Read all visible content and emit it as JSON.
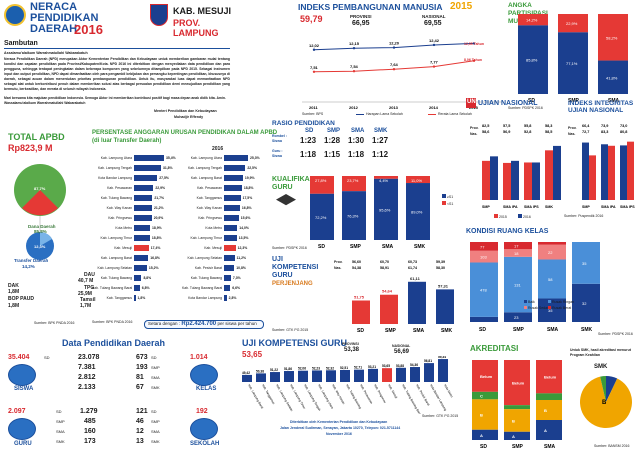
{
  "header": {
    "title_line1": "NERACA",
    "title_line2": "PENDIDIKAN",
    "title_line3": "DAERAH",
    "year": "2016",
    "kab": "KAB. MESUJI",
    "prov": "PROV. LAMPUNG"
  },
  "sambutan": {
    "title": "Sambutan",
    "salam": "Assalamu'alaikum Warrahmatullahi Wabarakatuh",
    "p1": "Neraca Pendidikan Daerah (NPD) merupakan Aktor Kementerian Pendidikan dan Kebudayaan untuk memberikan gambaran mulai tentang kondisi dan capaian pendidikan pada Provinsi/Kabupaten/Kota. NPD 2016 ini diterbitkan dengan menyediakan data pendidikan dan para pengguna, sehingga terdapat peningkatan dalam beberapa komponen yang sebelumnya ditampilkan pada NPD 2015. Sebagai instrumen input dan output pendidikan, NPD dapat dimanfaatkan oleh para pengambil kebijakan dan pemangku kepentingan pendidikan, khususnya di daerah, sebagai acuan dalam menentukan prioritas pembangunan pendidikan. Untuk itu, masyarakat luas dapat memanfaatkan NPD sebagai alat untuk berkontribusi penuh dalam memberikan solusi atas berbagai persoalan pendidikan demi mewujudkan pendidikan yang bermutu, berkeadilan, dan merata di seluruh wilayah Indonesia.",
    "p2": "Mari bersama kita majukan pendidikan Indonesia. Semoga Aktor ini memberikan kontribusi positif bagi masa depan anak didik kita. Amin. Wassalamu'alaikum Warrahmatullahi Wabarakatuh",
    "sign_title": "Menteri Pendidikan dan Kebudayaan",
    "sign_name": "Muhadjir Effendy"
  },
  "apbd": {
    "title": "TOTAL APBD",
    "total": "Rp823,9 M",
    "pie_pct_outer": "87,7%",
    "pie_pct_inner": "12,3%",
    "legend_dana": "Dana Daerah",
    "pct_dana": "85,8%",
    "legend_transfer": "Transfer Daerah",
    "pct_transfer": "14,2%",
    "source": "Sumber: BPK PNDA 2016",
    "items": [
      {
        "label": "DAU",
        "value": "40,7 M"
      },
      {
        "label": "DAK",
        "value": "1,8M"
      },
      {
        "label": "TPG",
        "value": "25,9M"
      },
      {
        "label": "BOP PAUD",
        "value": "1,8M"
      },
      {
        "label": "Tamsil",
        "value": "1,7M"
      }
    ]
  },
  "anggaran": {
    "title": "PERSENTASE ANGGARAN URUSAN PENDIDIKAN DALAM APBD",
    "subtitle": "(di luar Transfer Daerah)",
    "year": "2016",
    "left": [
      {
        "name": "Kab. Lampung Utara",
        "value": 35.4,
        "label": "35,4%",
        "hl": false
      },
      {
        "name": "Kab. Lampung Tengah",
        "value": 31.8,
        "label": "31,8%",
        "hl": false
      },
      {
        "name": "Kota Bandar Lampung",
        "value": 27.5,
        "label": "27,5%",
        "hl": false
      },
      {
        "name": "Kab. Pesawaran",
        "value": 22.9,
        "label": "22,9%",
        "hl": false
      },
      {
        "name": "Kab. Tulang Bawang",
        "value": 21.7,
        "label": "21,7%",
        "hl": false
      },
      {
        "name": "Kab. Way Kanan",
        "value": 21.2,
        "label": "21,2%",
        "hl": false
      },
      {
        "name": "Kab. Pringsewu",
        "value": 20.9,
        "label": "20,9%",
        "hl": false
      },
      {
        "name": "Kota Metro",
        "value": 18.9,
        "label": "18,9%",
        "hl": false
      },
      {
        "name": "Kab. Lampung Timur",
        "value": 18.8,
        "label": "18,8%",
        "hl": false
      },
      {
        "name": "Kab. Mesuji",
        "value": 17.4,
        "label": "17,4%",
        "hl": true
      },
      {
        "name": "Kab. Lampung Barat",
        "value": 16.8,
        "label": "16,8%",
        "hl": false
      },
      {
        "name": "Kab. Lampung Selatan",
        "value": 15.2,
        "label": "15,2%",
        "hl": false
      },
      {
        "name": "Kab. Tulang Bawang",
        "value": 8.8,
        "label": "8,8%",
        "hl": false
      },
      {
        "name": "Kab. Tulang Bawang Barat",
        "value": 6.8,
        "label": "6,8%",
        "hl": false
      },
      {
        "name": "Kab. Tanggamus",
        "value": 1.8,
        "label": "1,8%",
        "hl": false
      }
    ],
    "right": [
      {
        "name": "Kab. Lampung Utara",
        "value": 25.3,
        "label": "25,3%",
        "hl": false
      },
      {
        "name": "Kab. Lampung Tengah",
        "value": 22.5,
        "label": "22,5%",
        "hl": false
      },
      {
        "name": "Kab. Lampung Barat",
        "value": 19.9,
        "label": "19,9%",
        "hl": false
      },
      {
        "name": "Kab. Pesawaran",
        "value": 18.8,
        "label": "18,8%",
        "hl": false
      },
      {
        "name": "Kab. Tanggamus",
        "value": 17.5,
        "label": "17,5%",
        "hl": false
      },
      {
        "name": "Kab. Way Kanan",
        "value": 16.8,
        "label": "16,8%",
        "hl": false
      },
      {
        "name": "Kab. Pringsewu",
        "value": 15.6,
        "label": "15,6%",
        "hl": false
      },
      {
        "name": "Kota Metro",
        "value": 14.0,
        "label": "14,0%",
        "hl": false
      },
      {
        "name": "Kab. Lampung Timur",
        "value": 13.5,
        "label": "13,5%",
        "hl": false
      },
      {
        "name": "Kab. Mesuji",
        "value": 12.3,
        "label": "12,3%",
        "hl": true
      },
      {
        "name": "Kab. Lampung Selatan",
        "value": 11.2,
        "label": "11,2%",
        "hl": false
      },
      {
        "name": "Kab. Pesisir Barat",
        "value": 10.8,
        "label": "10,8%",
        "hl": false
      },
      {
        "name": "Kab. Tulang Bawang",
        "value": 7.3,
        "label": "7,3%",
        "hl": false
      },
      {
        "name": "Kab. Tulang Bawang Barat",
        "value": 6.6,
        "label": "6,6%",
        "hl": false
      },
      {
        "name": "Kota Bandar Lampung",
        "value": 2.8,
        "label": "2,8%",
        "hl": false
      }
    ],
    "setara_label": "Setara dengan :",
    "setara_value": "Rp2.424.700",
    "setara_unit": "per siswa per tahun",
    "source": "Sumber: BPK PNDA 2016"
  },
  "data_pendidikan": {
    "title": "Data Pendidikan Daerah",
    "siswa_total": "35.404",
    "siswa_label": "SISWA",
    "siswa_sd": "23.078",
    "siswa_smp": "7.381",
    "siswa_sma": "2.812",
    "siswa_smk": "2.133",
    "kelas_total": "1.014",
    "kelas_label": "KELAS",
    "kelas_sd": "673",
    "kelas_smp": "193",
    "kelas_sma": "81",
    "kelas_smk": "67",
    "guru_total": "2.097",
    "guru_label": "GURU",
    "guru_sd": "1.279",
    "guru_smp": "485",
    "guru_sma": "160",
    "guru_smk": "173",
    "sekolah_total": "192",
    "sekolah_label": "SEKOLAH",
    "sekolah_sd": "121",
    "sekolah_smp": "46",
    "sekolah_sma": "12",
    "sekolah_smk": "13",
    "lbl_sd": "SD",
    "lbl_smp": "SMP",
    "lbl_sma": "SMA",
    "lbl_smk": "SMK"
  },
  "ipm": {
    "title": "INDEKS PEMBANGUNAN MANUSIA",
    "year": "2015",
    "value": "59,79",
    "prov_label": "PROVINSI",
    "prov_value": "66,95",
    "nas_label": "NASIONAL",
    "nas_value": "69,55",
    "hls_label": "12,55 Tahun",
    "rls_label": "8,06 Tahun",
    "legend_hls": "Harapan Lama Sekolah",
    "legend_rls": "Rerata Lama Sekolah",
    "source": "Sumber: BPS"
  },
  "apm": {
    "title": "ANGKA PARTISIPASI MURNI",
    "source": "Sumber: PDSPK 2016"
  },
  "rasio": {
    "title": "RASIO PENDIDIKAN",
    "row1_label": "Rombel : Siswa",
    "row2_label": "Guru : Siswa",
    "sd": "SD",
    "smp": "SMP",
    "sma": "SMA",
    "smk": "SMK",
    "r1_sd": "1:23",
    "r1_smp": "1:28",
    "r1_sma": "1:30",
    "r1_smk": "1:27",
    "r2_sd": "1:18",
    "r2_smp": "1:15",
    "r2_sma": "1:18",
    "r2_smk": "1:12"
  },
  "kualifikasi": {
    "title": "KUALIFIKASI GURU",
    "source": "Sumber: PDSPK 2016",
    "legend_s1": "≥S1",
    "legend_less": "<S1"
  },
  "ukg": {
    "title_line1": "UJI",
    "title_line2": "KOMPETENSI",
    "title_line3": "GURU",
    "sub": "PERJENJANG",
    "prov_label": "Prov.",
    "nas_label": "Nas.",
    "source": "Sumber: GTK PG 2015"
  },
  "un": {
    "title": "UJIAN NASIONAL",
    "iiun_title": "INDEKS INTEGRITAS UJIAN NASIONAL",
    "prov_label": "Prov.",
    "nas_label": "Nas.",
    "legend_2015": "2015",
    "legend_2016": "2016",
    "source": "Sumber: Puspendik 2016"
  },
  "ruang": {
    "title": "KONDISI RUANG KELAS",
    "legend_baik": "Baik",
    "legend_ringan": "Rusak Ringan",
    "legend_sedang": "Rusak Sedang",
    "legend_berat": "Rusak Berat",
    "source": "Sumber: PDSPK 2016"
  },
  "ukg_daerah": {
    "title": "UJI KOMPETENSI GURU",
    "value": "53,65",
    "prov_label": "PROVINSI",
    "prov_value": "53,38",
    "nas_label": "NASIONAL",
    "nas_value": "56,69",
    "source": "Sumber: GTK PG 2015"
  },
  "akreditasi": {
    "title": "AKREDITASI",
    "note": "Untuk SMK, hasil akreditasi menurut Program Keahlian",
    "smk_label": "SMK",
    "source": "Sumber: BANSM 2016",
    "levels": [
      "A",
      "B",
      "C",
      "Belum"
    ]
  },
  "footer": {
    "line1": "Diterbitkan oleh Kementerian Pendidikan dan Kebudayaan",
    "line2": "Jalan Jenderal Sudirman, Senayan, Jakarta 10270, Telepon: 021-5711144",
    "line3": "November 2016"
  },
  "chart_data": [
    {
      "type": "line",
      "title": "INDEKS PEMBANGUNAN MANUSIA",
      "x": [
        2011,
        2012,
        2013,
        2014,
        2015
      ],
      "series": [
        {
          "name": "Harapan Lama Sekolah",
          "values": [
            12.02,
            12.15,
            12.2,
            12.42,
            12.55
          ]
        },
        {
          "name": "Rerata Lama Sekolah",
          "values": [
            7.51,
            7.54,
            7.64,
            7.77,
            8.06
          ]
        }
      ],
      "labels_hls": [
        "12,02",
        "12,15",
        "12,20",
        "12,42"
      ],
      "labels_rls": [
        "7,51",
        "7,54",
        "7,64",
        "7,77"
      ]
    },
    {
      "type": "bar",
      "title": "ANGKA PARTISIPASI MURNI",
      "categories": [
        "SD",
        "SMP",
        "SMA"
      ],
      "series": [
        {
          "name": "APM",
          "values": [
            85.8,
            77.1,
            41.8
          ],
          "labels": [
            "85,8%",
            "77,1%",
            "41,8%"
          ]
        },
        {
          "name": "Sisa",
          "values": [
            14.2,
            22.9,
            58.2
          ],
          "labels": [
            "14,2%",
            "22,9%",
            "58,2%"
          ]
        }
      ]
    },
    {
      "type": "bar",
      "title": "UJIAN NASIONAL",
      "categories": [
        "SMP",
        "SMA IPA",
        "SMA IPS",
        "SMK"
      ],
      "prov": [
        "82,5",
        "57,5",
        "55,8",
        "58,3"
      ],
      "nas": [
        "58,6",
        "56,9",
        "52,8",
        "58,5"
      ],
      "series": [
        {
          "name": "2015",
          "values": [
            43.5,
            41.2,
            41.7,
            55.2
          ]
        },
        {
          "name": "2016",
          "values": [
            48.5,
            43.5,
            41.7,
            60.1
          ]
        }
      ]
    },
    {
      "type": "bar",
      "title": "INDEKS INTEGRITAS UJIAN NASIONAL",
      "categories": [
        "SMP",
        "SMA IPA",
        "SMA IPS"
      ],
      "prov": [
        "66,4",
        "73,9",
        "73,0"
      ],
      "nas": [
        "72,7",
        "83,3",
        "80,8"
      ],
      "series": [
        {
          "name": "2015",
          "values": [
            76.6,
            74.3,
            72.8
          ]
        },
        {
          "name": "2016",
          "values": [
            59.5,
            72.3,
            77.8
          ]
        }
      ]
    },
    {
      "type": "bar",
      "title": "KUALIFIKASI GURU",
      "categories": [
        "SD",
        "SMP",
        "SMA",
        "SMK"
      ],
      "series": [
        {
          "name": "≥S1",
          "values": [
            72.2,
            76.3,
            95.6,
            89.0
          ],
          "labels": [
            "72,2%",
            "76,3%",
            "95,6%",
            "89,0%"
          ]
        },
        {
          "name": "<S1",
          "values": [
            27.8,
            23.7,
            4.4,
            11.0
          ],
          "labels": [
            "27,8%",
            "23,7%",
            "4,4%",
            "11,0%"
          ]
        }
      ]
    },
    {
      "type": "bar",
      "title": "UJI KOMPETENSI GURU PERJENJANG",
      "categories": [
        "SD",
        "SMP",
        "SMA",
        "SMK"
      ],
      "prov": [
        "56,60",
        "60,70",
        "60,73",
        "59,39"
      ],
      "nas": [
        "54,38",
        "58,91",
        "61,74",
        "58,30"
      ],
      "values": [
        51.75,
        54.64,
        61.11,
        57.31
      ],
      "labels": [
        "51,75",
        "54,64",
        "61,11",
        "57,31"
      ]
    },
    {
      "type": "bar",
      "title": "KONDISI RUANG KELAS",
      "categories": [
        "SD",
        "SMP",
        "SMA",
        "SMK"
      ],
      "series": [
        {
          "name": "Baik",
          "values": [
            45,
            23,
            35,
            32
          ],
          "labels": [
            "45",
            "23",
            "35",
            "32"
          ]
        },
        {
          "name": "Rusak Ringan",
          "values": [
            478,
            131,
            58,
            35
          ],
          "labels": [
            "478",
            "131",
            "58",
            "35"
          ]
        },
        {
          "name": "Rusak Sedang",
          "values": [
            103,
            18,
            22,
            0
          ],
          "labels": [
            "103",
            "18",
            "22",
            ""
          ]
        },
        {
          "name": "Rusak Berat",
          "values": [
            77,
            17,
            4,
            0
          ],
          "labels": [
            "77",
            "17",
            "4",
            ""
          ]
        }
      ]
    },
    {
      "type": "bar",
      "title": "UJI KOMPETENSI GURU",
      "categories": [
        "Kab. Lampung Barat",
        "Kab. Tanggamus",
        "Kab. Lampung Selatan",
        "Kab. Lampung Timur",
        "Kab. Lampung Tengah",
        "Kab. Lampung Utara",
        "Kab. Way Kanan",
        "Kab. Tulang Bawang",
        "Kab. Pesawaran",
        "Kab. Pringsewu",
        "Kab. Mesuji",
        "Kab. Tulang Bawang Barat",
        "Kab. Pesisir Barat",
        "Kota Bandar Lampung",
        "Kota Metro"
      ],
      "values": [
        49.42,
        50.38,
        51.22,
        51.86,
        52.06,
        52.23,
        52.32,
        52.51,
        52.71,
        53.21,
        53.65,
        53.88,
        54.36,
        56.81,
        59.34
      ],
      "labels": [
        "49,42",
        "50,38",
        "51,22",
        "51,86",
        "52,06",
        "52,23",
        "52,32",
        "52,51",
        "52,71",
        "53,21",
        "53,65",
        "53,88",
        "54,36",
        "56,81",
        "59,34"
      ],
      "highlight": "Kab. Mesuji"
    },
    {
      "type": "pie",
      "title": "AKREDITASI",
      "groups": [
        {
          "name": "SD",
          "slices": [
            {
              "label": "A",
              "value": 12.8
            },
            {
              "label": "B",
              "value": 38.0
            },
            {
              "label": "C",
              "value": 9.4
            },
            {
              "label": "Belum",
              "value": 39.8
            }
          ]
        },
        {
          "name": "SMP",
          "slices": [
            {
              "label": "A",
              "value": 8.7
            },
            {
              "label": "B",
              "value": 23.9
            },
            {
              "label": "C",
              "value": 4.3
            },
            {
              "label": "Belum",
              "value": 47.8
            }
          ]
        },
        {
          "name": "SMA",
          "slices": [
            {
              "label": "A",
              "value": 25.0
            },
            {
              "label": "B",
              "value": 25.0
            },
            {
              "label": "C",
              "value": 8.3
            },
            {
              "label": "Belum",
              "value": 41.7
            }
          ]
        },
        {
          "name": "SMK",
          "slices": [
            {
              "label": "A",
              "value": 7.1
            },
            {
              "label": "B",
              "value": 89.3
            },
            {
              "label": "C",
              "value": 3.6
            }
          ]
        }
      ]
    }
  ]
}
